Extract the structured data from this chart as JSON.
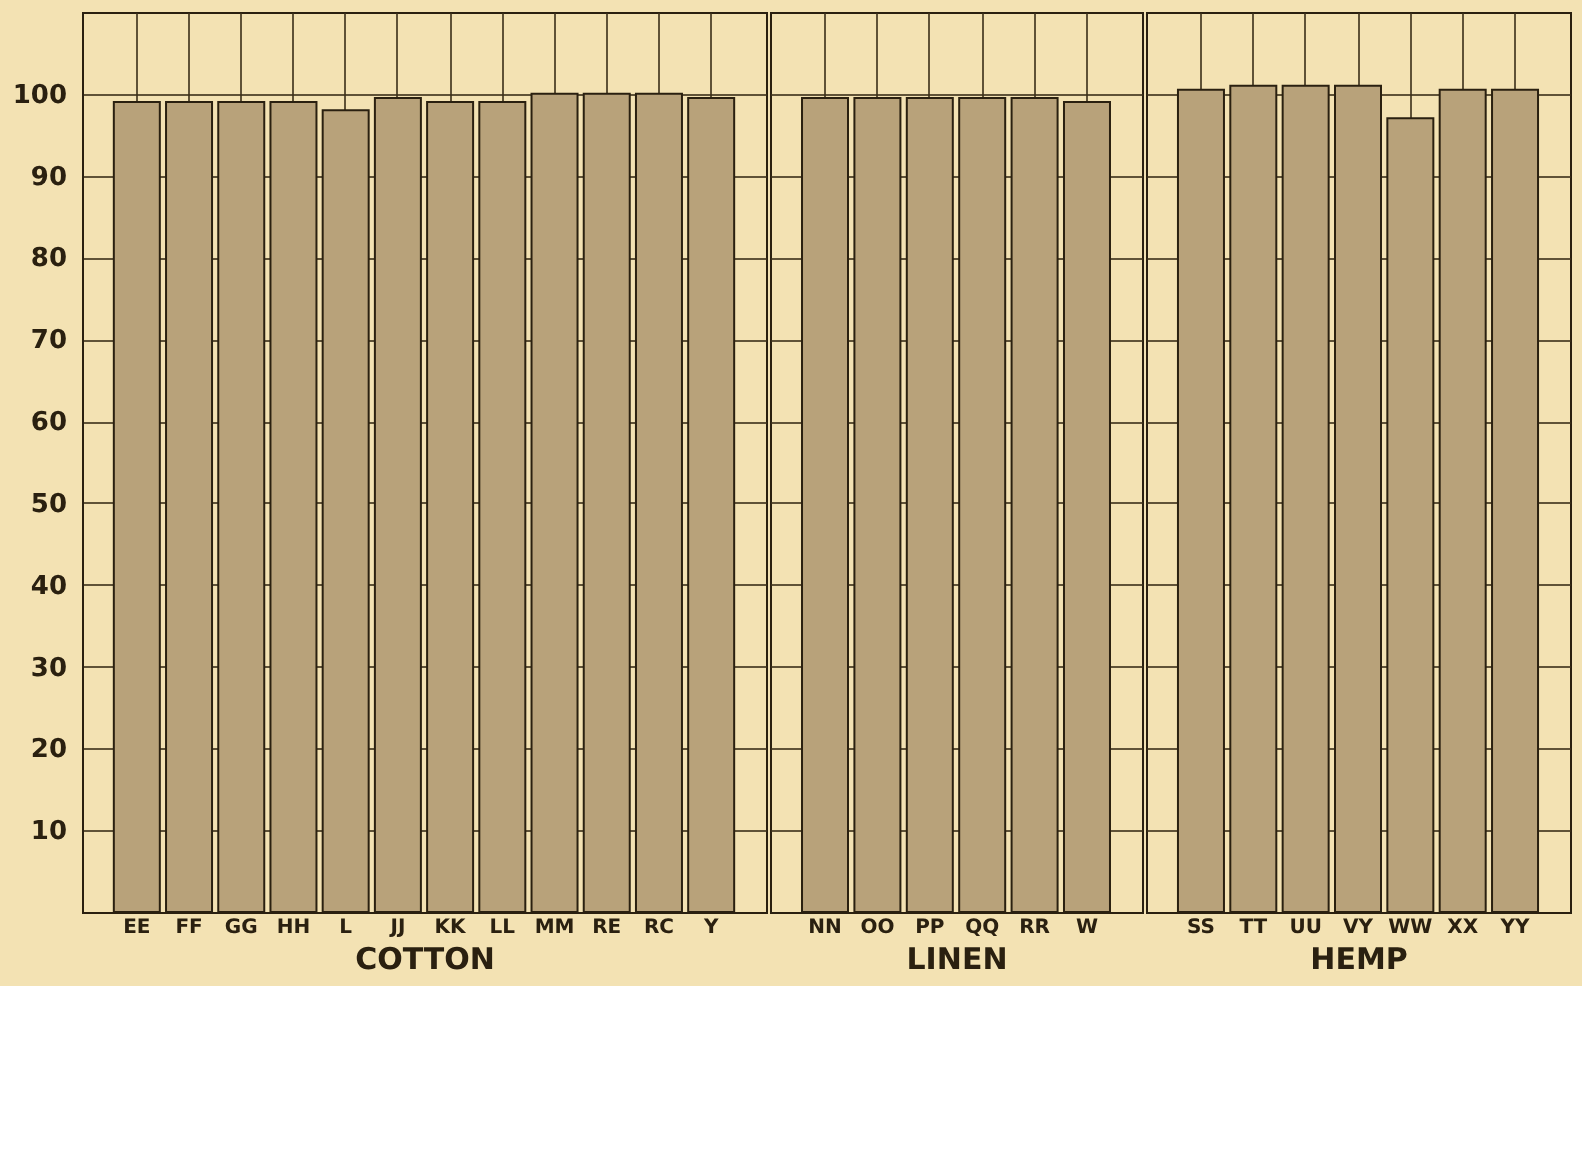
{
  "chart_data": [
    {
      "type": "bar",
      "xlabel": "COTTON",
      "categories": [
        "EE",
        "FF",
        "GG",
        "HH",
        "L",
        "JJ",
        "KK",
        "LL",
        "MM",
        "RE",
        "RC",
        "Y"
      ],
      "values": [
        99,
        99,
        99,
        99,
        98,
        99.5,
        99,
        99,
        100,
        100,
        100,
        99.5
      ],
      "color": "#b8a27a",
      "ylim": [
        0,
        110
      ],
      "yticks": [
        10,
        20,
        30,
        40,
        50,
        60,
        70,
        80,
        90,
        100
      ],
      "grid": true
    },
    {
      "type": "bar",
      "xlabel": "LINEN",
      "categories": [
        "NN",
        "OO",
        "PP",
        "QQ",
        "RR",
        "W"
      ],
      "values": [
        99.5,
        99.5,
        99.5,
        99.5,
        99.5,
        99
      ],
      "color": "#b8a27a",
      "ylim": [
        0,
        110
      ],
      "grid": true,
      "tick_labels": "x"
    },
    {
      "type": "bar",
      "xlabel": "HEMP",
      "categories": [
        "SS",
        "TT",
        "UU",
        "VY",
        "WW",
        "XX",
        "YY"
      ],
      "values": [
        100.5,
        101,
        101,
        101,
        97,
        100.5,
        100.5
      ],
      "color": "#b8a27a",
      "ylim": [
        0,
        110
      ],
      "grid": true,
      "tick_labels": "x"
    }
  ]
}
